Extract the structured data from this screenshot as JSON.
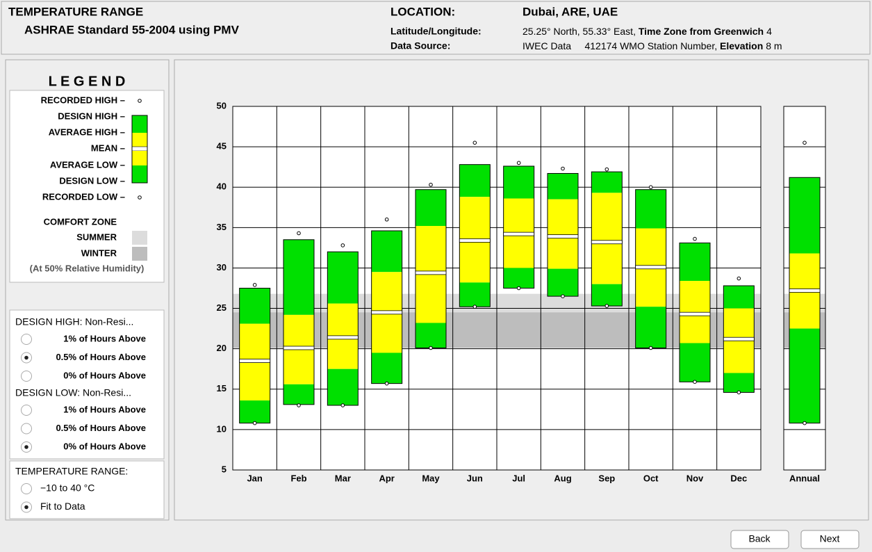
{
  "header": {
    "title": "TEMPERATURE RANGE",
    "subtitle": "ASHRAE Standard 55-2004 using PMV",
    "location_label": "LOCATION:",
    "location": "Dubai, ARE, UAE",
    "latlon_label": "Latitude/Longitude:",
    "latlon": "25.25° North, 55.33° East, ",
    "timezone_label": "Time Zone from Greenwich",
    "timezone": "4",
    "source_label": "Data Source:",
    "source": "IWEC Data     412174 WMO Station Number, ",
    "elevation_label": "Elevation",
    "elevation": "8 m"
  },
  "legend": {
    "title": "L E G E N D",
    "comfort_title": "COMFORT ZONE",
    "humidity_note": "(At 50% Relative Humidity)"
  },
  "options": [
    {
      "title": "DESIGN HIGH:  Non-Resi...",
      "choices": [
        {
          "label": "1% of Hours Above",
          "selected": false
        },
        {
          "label": "0.5% of Hours Above",
          "selected": true
        },
        {
          "label": "0% of Hours Above",
          "selected": false
        }
      ]
    },
    {
      "title": "DESIGN LOW:  Non-Resi...",
      "choices": [
        {
          "label": "1% of Hours Above",
          "selected": false
        },
        {
          "label": "0.5% of Hours Above",
          "selected": false
        },
        {
          "label": "0% of Hours Above",
          "selected": true
        }
      ]
    },
    {
      "title": "TEMPERATURE RANGE:",
      "choices": [
        {
          "label": "−10 to 40 °C",
          "selected": false
        },
        {
          "label": "Fit to Data",
          "selected": true
        }
      ]
    }
  ],
  "buttons": [
    "Back",
    "Next"
  ],
  "chart_data": {
    "type": "range-box",
    "categories": [
      "Jan",
      "Feb",
      "Mar",
      "Apr",
      "May",
      "Jun",
      "Jul",
      "Aug",
      "Sep",
      "Oct",
      "Nov",
      "Dec",
      "Annual"
    ],
    "series": [
      {
        "name": "RECORDED HIGH –",
        "color": "#ffffff",
        "values": [
          27.9,
          34.3,
          32.8,
          36.0,
          40.3,
          45.5,
          43.0,
          42.3,
          42.2,
          40.0,
          33.6,
          28.7,
          45.5
        ]
      },
      {
        "name": "DESIGN HIGH –",
        "color": "#00e000",
        "values": [
          27.5,
          33.5,
          32.0,
          34.6,
          39.7,
          42.8,
          42.6,
          41.7,
          41.9,
          39.7,
          33.1,
          27.8,
          41.2
        ]
      },
      {
        "name": "AVERAGE HIGH –",
        "color": "#ffff00",
        "values": [
          23.1,
          24.2,
          25.6,
          29.5,
          35.2,
          38.8,
          38.6,
          38.5,
          39.3,
          34.9,
          28.4,
          25.0,
          31.8
        ]
      },
      {
        "name": "MEAN –",
        "color": "#ffffff",
        "values": [
          18.5,
          20.1,
          21.4,
          24.5,
          29.4,
          33.4,
          34.2,
          33.9,
          33.2,
          30.1,
          24.3,
          21.2,
          27.2
        ]
      },
      {
        "name": "AVERAGE LOW –",
        "color": "#ffff00",
        "values": [
          13.6,
          15.6,
          17.5,
          19.5,
          23.2,
          28.2,
          30.0,
          29.9,
          28.0,
          25.2,
          20.7,
          17.0,
          22.5
        ]
      },
      {
        "name": "DESIGN LOW –",
        "color": "#00e000",
        "values": [
          10.8,
          13.1,
          13.0,
          15.7,
          20.1,
          25.2,
          27.5,
          26.5,
          25.3,
          20.1,
          15.9,
          14.6,
          10.8
        ]
      },
      {
        "name": "RECORDED LOW –",
        "color": "#ffffff",
        "values": [
          10.8,
          13.0,
          13.0,
          15.7,
          20.1,
          25.2,
          27.5,
          26.5,
          25.3,
          20.1,
          15.9,
          14.6,
          10.8
        ]
      }
    ],
    "comfort_zones": [
      {
        "name": "SUMMER",
        "color": "#dcdcdc",
        "range": [
          20.1,
          26.8
        ]
      },
      {
        "name": "WINTER",
        "color": "#bdbdbd",
        "range": [
          20.1,
          24.5
        ]
      }
    ],
    "ylim": [
      5,
      50
    ],
    "yticks": [
      5,
      10,
      15,
      20,
      25,
      30,
      35,
      40,
      45,
      50
    ],
    "grid": true
  }
}
